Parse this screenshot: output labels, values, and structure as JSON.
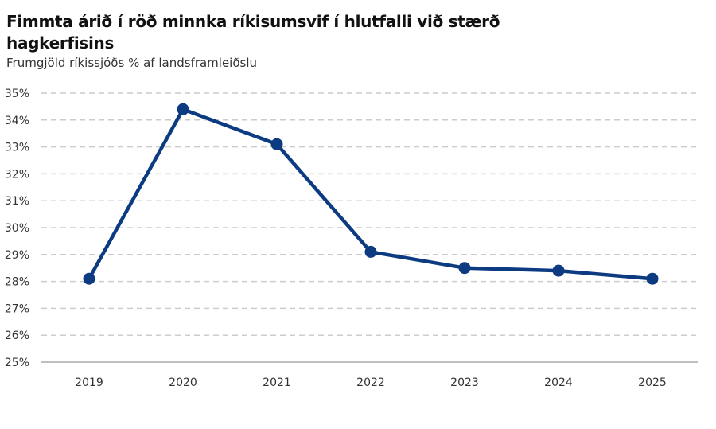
{
  "chart_data": {
    "type": "line",
    "title": "Fimmta árið í röð minnka ríkisumsvif í hlutfalli við stærð hagkerfisins",
    "subtitle": "Frumgjöld ríkissjóðs % af landsframleiðslu",
    "xlabel": "",
    "ylabel": "",
    "categories": [
      "2019",
      "2020",
      "2021",
      "2022",
      "2023",
      "2024",
      "2025"
    ],
    "values": [
      28.1,
      34.4,
      33.1,
      29.1,
      28.5,
      28.4,
      28.1
    ],
    "ylim": [
      25,
      35
    ],
    "yticks": [
      25,
      26,
      27,
      28,
      29,
      30,
      31,
      32,
      33,
      34,
      35
    ],
    "ytick_labels": [
      "25%",
      "26%",
      "27%",
      "28%",
      "29%",
      "30%",
      "31%",
      "32%",
      "33%",
      "34%",
      "35%"
    ],
    "grid": true,
    "legend": "none",
    "colors": {
      "line": "#0d3b82",
      "grid": "#cccccc",
      "axis": "#999999"
    }
  }
}
